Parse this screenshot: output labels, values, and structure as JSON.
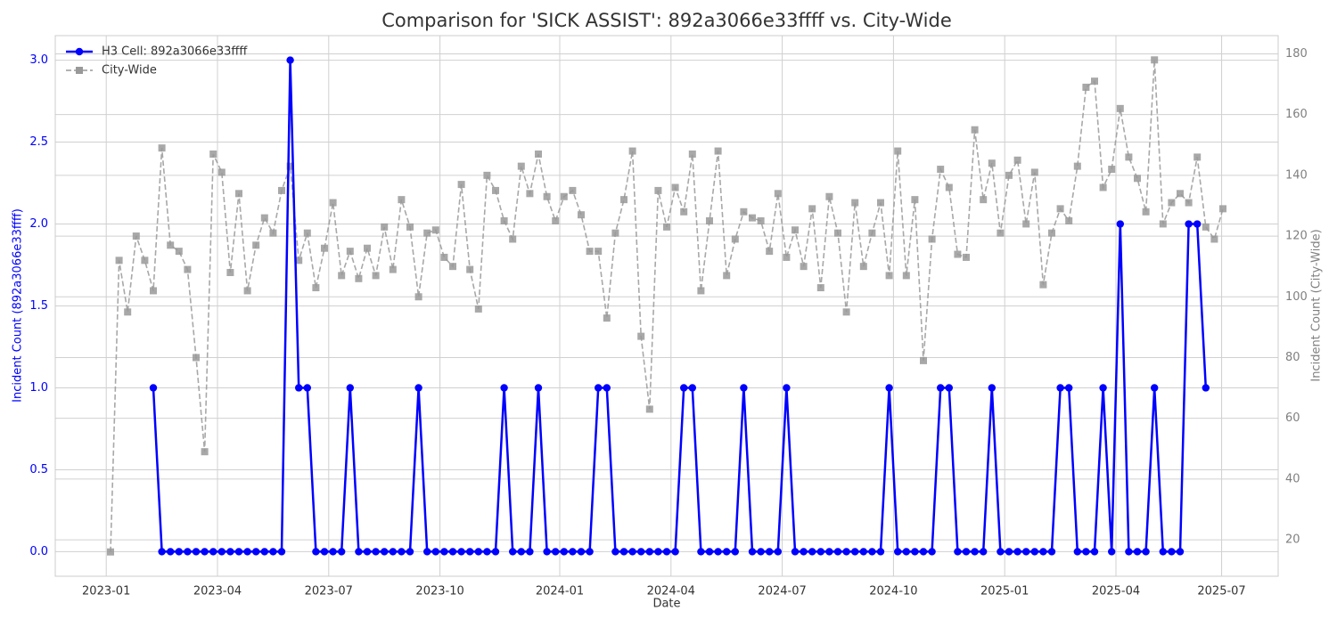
{
  "chart_data": {
    "type": "line",
    "title": "Comparison for 'SICK ASSIST': 892a3066e33ffff vs. City-Wide",
    "xlabel": "Date",
    "ylabel": "Incident Count (892a3066e33ffff)",
    "y2label": "Incident Count (City-Wide)",
    "x": [
      "2023-01",
      "2023-01",
      "2023-01",
      "2023-01",
      "2023-01",
      "2023-02",
      "2023-02",
      "2023-02",
      "2023-02",
      "2023-03",
      "2023-03",
      "2023-03",
      "2023-03",
      "2023-04",
      "2023-04",
      "2023-04",
      "2023-04",
      "2023-04",
      "2023-05",
      "2023-05",
      "2023-05",
      "2023-05",
      "2023-06",
      "2023-06",
      "2023-06",
      "2023-06",
      "2023-07",
      "2023-07",
      "2023-07",
      "2023-07",
      "2023-07",
      "2023-08",
      "2023-08",
      "2023-08",
      "2023-08",
      "2023-09",
      "2023-09",
      "2023-09",
      "2023-09",
      "2023-10",
      "2023-10",
      "2023-10",
      "2023-10",
      "2023-10",
      "2023-11",
      "2023-11",
      "2023-11",
      "2023-11",
      "2023-12",
      "2023-12",
      "2023-12",
      "2023-12",
      "2023-12",
      "2024-01",
      "2024-01",
      "2024-01",
      "2024-01",
      "2024-02",
      "2024-02",
      "2024-02",
      "2024-02",
      "2024-03",
      "2024-03",
      "2024-03",
      "2024-03",
      "2024-03",
      "2024-04",
      "2024-04",
      "2024-04",
      "2024-04",
      "2024-05",
      "2024-05",
      "2024-05",
      "2024-05",
      "2024-06",
      "2024-06",
      "2024-06",
      "2024-06",
      "2024-06",
      "2024-07",
      "2024-07",
      "2024-07",
      "2024-07",
      "2024-08",
      "2024-08",
      "2024-08",
      "2024-08",
      "2024-09",
      "2024-09",
      "2024-09",
      "2024-09",
      "2024-09",
      "2024-10",
      "2024-10",
      "2024-10",
      "2024-10",
      "2024-11",
      "2024-11",
      "2024-11",
      "2024-11",
      "2024-12",
      "2024-12",
      "2024-12",
      "2024-12",
      "2024-12",
      "2025-01",
      "2025-01",
      "2025-01",
      "2025-01",
      "2025-02",
      "2025-02",
      "2025-02",
      "2025-02",
      "2025-03",
      "2025-03",
      "2025-03",
      "2025-03",
      "2025-03",
      "2025-04",
      "2025-04",
      "2025-04",
      "2025-04",
      "2025-05",
      "2025-05",
      "2025-05",
      "2025-05",
      "2025-06",
      "2025-06",
      "2025-06",
      "2025-06",
      "2025-06"
    ],
    "series": [
      {
        "name": "H3 Cell: 892a3066e33ffff",
        "color": "#0000ff",
        "marker": "circle",
        "dashed": false,
        "values": [
          null,
          null,
          null,
          null,
          null,
          1,
          0,
          0,
          0,
          0,
          0,
          0,
          0,
          0,
          0,
          0,
          0,
          0,
          0,
          0,
          0,
          3,
          1,
          1,
          0,
          0,
          0,
          0,
          1,
          0,
          0,
          0,
          0,
          0,
          0,
          0,
          1,
          0,
          0,
          0,
          0,
          0,
          0,
          0,
          0,
          0,
          1,
          0,
          0,
          0,
          1,
          0,
          0,
          0,
          0,
          0,
          0,
          1,
          1,
          0,
          0,
          0,
          0,
          0,
          0,
          0,
          0,
          1,
          1,
          0,
          0,
          0,
          0,
          0,
          1,
          0,
          0,
          0,
          0,
          1,
          0,
          0,
          0,
          0,
          0,
          0,
          0,
          0,
          0,
          0,
          0,
          1,
          0,
          0,
          0,
          0,
          0,
          1,
          1,
          0,
          0,
          0,
          0,
          1,
          0,
          0,
          0,
          0,
          0,
          0,
          0,
          1,
          1,
          0,
          0,
          0,
          1,
          0,
          2,
          0,
          0,
          0,
          1,
          0,
          0,
          0,
          2,
          2,
          1,
          null,
          null
        ]
      },
      {
        "name": "City-Wide",
        "color": "#999999",
        "marker": "square",
        "dashed": true,
        "axis": "y2",
        "values": [
          16,
          112,
          95,
          120,
          112,
          102,
          149,
          117,
          115,
          109,
          80,
          49,
          147,
          141,
          108,
          134,
          102,
          117,
          126,
          121,
          135,
          143,
          112,
          121,
          103,
          116,
          131,
          107,
          115,
          106,
          116,
          107,
          123,
          109,
          132,
          123,
          100,
          121,
          122,
          113,
          110,
          137,
          109,
          96,
          140,
          135,
          125,
          119,
          143,
          134,
          147,
          133,
          125,
          133,
          135,
          127,
          115,
          115,
          93,
          121,
          132,
          148,
          87,
          63,
          135,
          123,
          136,
          128,
          147,
          102,
          125,
          148,
          107,
          119,
          128,
          126,
          125,
          115,
          134,
          113,
          122,
          110,
          129,
          103,
          133,
          121,
          95,
          131,
          110,
          121,
          131,
          107,
          148,
          107,
          132,
          79,
          119,
          142,
          136,
          114,
          113,
          155,
          132,
          144,
          121,
          140,
          145,
          124,
          141,
          104,
          121,
          129,
          125,
          143,
          169,
          171,
          136,
          142,
          162,
          146,
          139,
          128,
          178,
          124,
          131,
          134,
          131,
          146,
          123,
          119,
          129
        ]
      }
    ],
    "xticks": [
      "2023-01",
      "2023-04",
      "2023-07",
      "2023-10",
      "2024-01",
      "2024-04",
      "2024-07",
      "2024-10",
      "2025-01",
      "2025-04",
      "2025-07"
    ],
    "ylim": [
      -0.15,
      3.15
    ],
    "yticks": [
      {
        "value": 0,
        "label": "0.0"
      },
      0.5,
      {
        "value": 1,
        "label": "1.0"
      },
      1.5,
      {
        "value": 2,
        "label": "2.0"
      },
      2.5,
      {
        "value": 3,
        "label": "3.0"
      }
    ],
    "y2lim": [
      8,
      186
    ],
    "y2ticks": [
      20,
      40,
      60,
      80,
      100,
      120,
      140,
      160,
      180
    ],
    "grid": true,
    "legend": "upper left"
  }
}
